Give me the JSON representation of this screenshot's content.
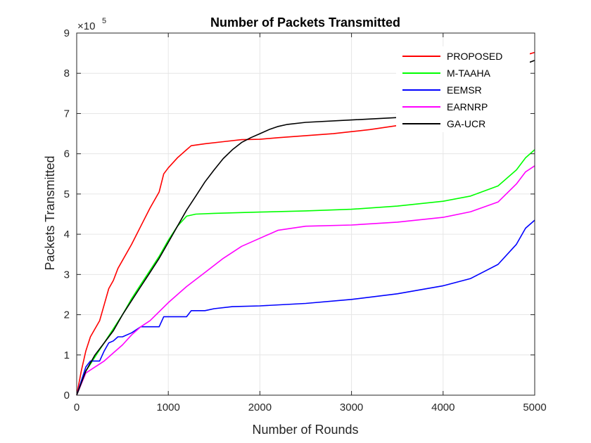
{
  "chart_data": {
    "type": "line",
    "title": "Number of Packets Transmitted",
    "xlabel": "Number of Rounds",
    "ylabel": "Packets Transmitted",
    "xlim": [
      0,
      5000
    ],
    "ylim": [
      0,
      900000
    ],
    "x_ticks": [
      0,
      1000,
      2000,
      3000,
      4000,
      5000
    ],
    "y_ticks": [
      0,
      1,
      2,
      3,
      4,
      5,
      6,
      7,
      8,
      9
    ],
    "y_multiplier_base": "×10",
    "y_multiplier_exp": "5",
    "grid": true,
    "legend_position": "top-right",
    "series": [
      {
        "name": "PROPOSED",
        "color": "#ff0000",
        "x": [
          0,
          50,
          100,
          150,
          200,
          250,
          300,
          350,
          400,
          450,
          500,
          600,
          700,
          800,
          900,
          950,
          1000,
          1100,
          1200,
          1250,
          1400,
          1600,
          1800,
          2000,
          2200,
          2500,
          2800,
          3000,
          3200,
          3500
        ],
        "y": [
          0,
          60000,
          110000,
          145000,
          165000,
          185000,
          225000,
          265000,
          285000,
          315000,
          335000,
          375000,
          420000,
          465000,
          505000,
          550000,
          565000,
          590000,
          610000,
          620000,
          625000,
          630000,
          635000,
          636000,
          640000,
          645000,
          650000,
          655000,
          660000,
          670000
        ]
      },
      {
        "name": "M-TAAHA",
        "color": "#00ff00",
        "x": [
          0,
          100,
          200,
          300,
          400,
          500,
          600,
          700,
          800,
          900,
          1000,
          1100,
          1200,
          1300,
          1500,
          2000,
          2500,
          3000,
          3500,
          4000,
          4300,
          4600,
          4800,
          4900,
          5000
        ],
        "y": [
          0,
          60000,
          95000,
          130000,
          165000,
          200000,
          240000,
          275000,
          310000,
          345000,
          385000,
          420000,
          445000,
          450000,
          452000,
          455000,
          458000,
          462000,
          470000,
          482000,
          495000,
          520000,
          560000,
          590000,
          610000
        ]
      },
      {
        "name": "EEMSR",
        "color": "#0000ff",
        "x": [
          0,
          100,
          150,
          250,
          300,
          350,
          400,
          450,
          500,
          600,
          700,
          800,
          900,
          950,
          1000,
          1200,
          1250,
          1400,
          1500,
          1700,
          2000,
          2500,
          3000,
          3500,
          4000,
          4300,
          4600,
          4800,
          4900,
          5000
        ],
        "y": [
          0,
          70000,
          85000,
          85000,
          110000,
          130000,
          135000,
          145000,
          145000,
          155000,
          170000,
          170000,
          170000,
          195000,
          195000,
          195000,
          210000,
          210000,
          215000,
          220000,
          222000,
          228000,
          238000,
          252000,
          272000,
          290000,
          325000,
          375000,
          415000,
          435000
        ]
      },
      {
        "name": "EARNRP",
        "color": "#ff00ff",
        "x": [
          0,
          100,
          200,
          300,
          400,
          500,
          600,
          700,
          800,
          1000,
          1200,
          1400,
          1600,
          1800,
          2000,
          2200,
          2500,
          3000,
          3500,
          4000,
          4300,
          4600,
          4800,
          4900,
          5000
        ],
        "y": [
          0,
          55000,
          70000,
          85000,
          105000,
          125000,
          150000,
          170000,
          185000,
          230000,
          270000,
          305000,
          340000,
          370000,
          390000,
          410000,
          420000,
          423000,
          430000,
          442000,
          456000,
          480000,
          525000,
          555000,
          570000
        ]
      },
      {
        "name": "GA-UCR",
        "color": "#000000",
        "x": [
          0,
          100,
          200,
          300,
          400,
          500,
          600,
          700,
          800,
          900,
          1000,
          1100,
          1200,
          1300,
          1400,
          1500,
          1600,
          1700,
          1800,
          1900,
          2000,
          2100,
          2200,
          2300,
          2500,
          3000,
          3500
        ],
        "y": [
          0,
          60000,
          100000,
          130000,
          160000,
          200000,
          235000,
          270000,
          305000,
          340000,
          380000,
          420000,
          460000,
          495000,
          530000,
          560000,
          588000,
          610000,
          628000,
          640000,
          650000,
          660000,
          668000,
          673000,
          678000,
          684000,
          690000
        ]
      }
    ],
    "tail_segments": [
      {
        "name": "PROPOSED",
        "color": "#ff0000",
        "x": [
          4880,
          4940,
          5000
        ],
        "y": [
          840000,
          848000,
          852000
        ]
      },
      {
        "name": "GA-UCR",
        "color": "#000000",
        "x": [
          4880,
          4940,
          5000
        ],
        "y": [
          820000,
          827000,
          832000
        ]
      }
    ]
  }
}
